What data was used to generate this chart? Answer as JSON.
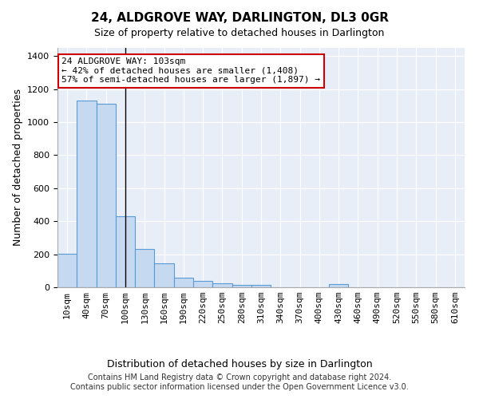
{
  "title": "24, ALDGROVE WAY, DARLINGTON, DL3 0GR",
  "subtitle": "Size of property relative to detached houses in Darlington",
  "xlabel": "Distribution of detached houses by size in Darlington",
  "ylabel": "Number of detached properties",
  "bar_color": "#c5d9f0",
  "bar_edge_color": "#5b9bd5",
  "background_color": "#e8eef8",
  "grid_color": "#ffffff",
  "annotation_box_edgecolor": "#cc0000",
  "property_line_color": "#000000",
  "categories": [
    "10sqm",
    "40sqm",
    "70sqm",
    "100sqm",
    "130sqm",
    "160sqm",
    "190sqm",
    "220sqm",
    "250sqm",
    "280sqm",
    "310sqm",
    "340sqm",
    "370sqm",
    "400sqm",
    "430sqm",
    "460sqm",
    "490sqm",
    "520sqm",
    "550sqm",
    "580sqm",
    "610sqm"
  ],
  "values": [
    205,
    1130,
    1110,
    430,
    230,
    145,
    60,
    38,
    22,
    14,
    14,
    0,
    0,
    0,
    20,
    0,
    0,
    0,
    0,
    0,
    0
  ],
  "ylim": [
    0,
    1450
  ],
  "yticks": [
    0,
    200,
    400,
    600,
    800,
    1000,
    1200,
    1400
  ],
  "property_line_x": 3.0,
  "annotation_text_line1": "24 ALDGROVE WAY: 103sqm",
  "annotation_text_line2": "← 42% of detached houses are smaller (1,408)",
  "annotation_text_line3": "57% of semi-detached houses are larger (1,897) →",
  "footer_line1": "Contains HM Land Registry data © Crown copyright and database right 2024.",
  "footer_line2": "Contains public sector information licensed under the Open Government Licence v3.0.",
  "title_fontsize": 11,
  "subtitle_fontsize": 9,
  "ylabel_fontsize": 9,
  "xlabel_fontsize": 9,
  "tick_fontsize": 8,
  "footer_fontsize": 7,
  "annotation_fontsize": 8
}
